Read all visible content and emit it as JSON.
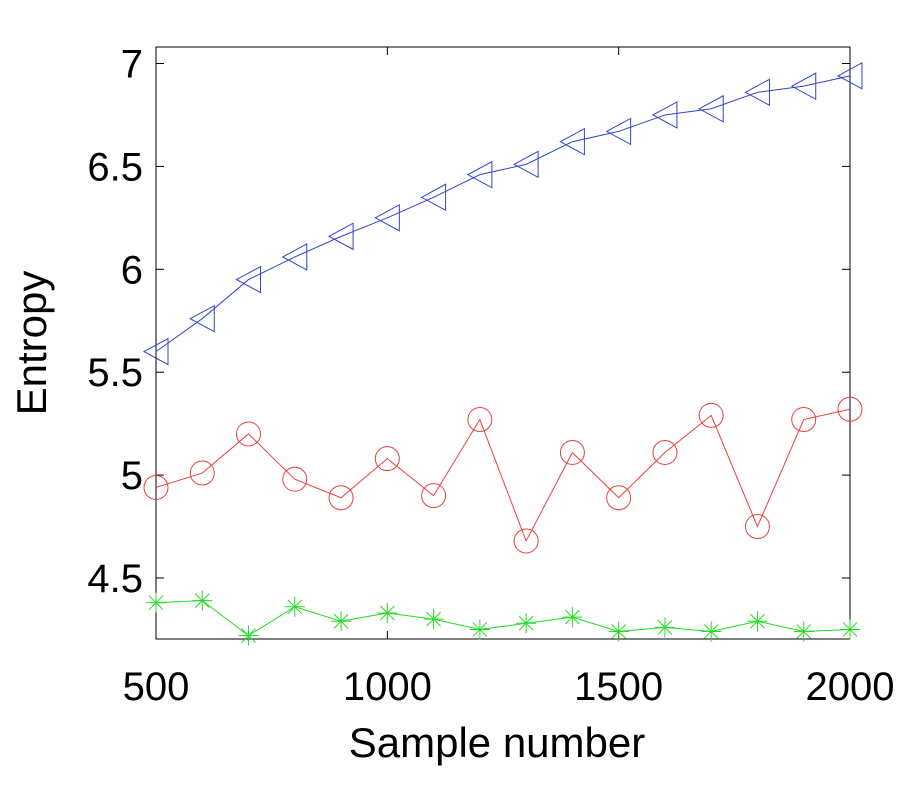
{
  "chart_data": {
    "type": "line",
    "xlabel": "Sample number",
    "ylabel": "Entropy",
    "xlim": [
      500,
      2000
    ],
    "ylim": [
      4.19,
      7.09
    ],
    "xticks": [
      500,
      1000,
      1500,
      2000
    ],
    "yticks": [
      4.5,
      5,
      5.5,
      6,
      6.5,
      7
    ],
    "grid": false,
    "x": [
      500,
      600,
      700,
      800,
      900,
      1000,
      1100,
      1200,
      1300,
      1400,
      1500,
      1600,
      1700,
      1800,
      1900,
      2000
    ],
    "series": [
      {
        "marker": "triangle-left",
        "color": "#3344cc",
        "values": [
          5.6,
          5.76,
          5.95,
          6.06,
          6.16,
          6.25,
          6.35,
          6.46,
          6.51,
          6.62,
          6.67,
          6.75,
          6.78,
          6.86,
          6.89,
          6.94
        ]
      },
      {
        "marker": "circle",
        "color": "#e8413f",
        "values": [
          4.94,
          5.01,
          5.2,
          4.98,
          4.89,
          5.08,
          4.9,
          5.27,
          4.68,
          5.11,
          4.89,
          5.11,
          5.29,
          4.75,
          5.27,
          5.32
        ]
      },
      {
        "marker": "asterisk",
        "color": "#22dd22",
        "values": [
          4.38,
          4.39,
          4.22,
          4.36,
          4.29,
          4.33,
          4.3,
          4.25,
          4.28,
          4.31,
          4.24,
          4.26,
          4.24,
          4.29,
          4.24,
          4.25
        ]
      }
    ]
  }
}
